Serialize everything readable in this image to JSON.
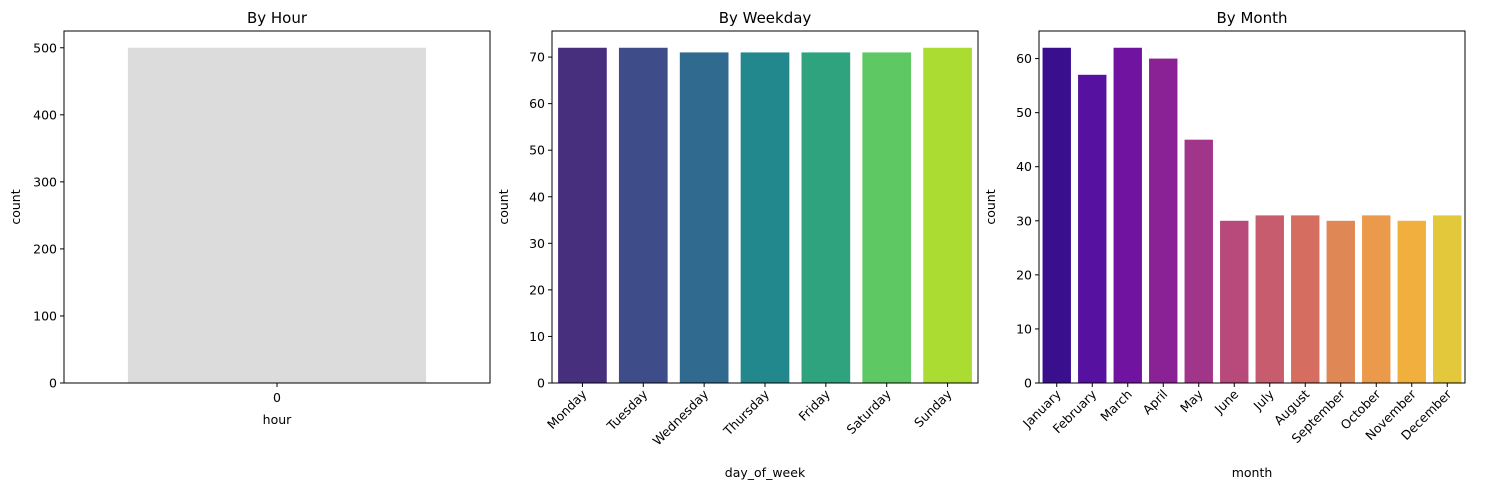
{
  "chart_data": [
    {
      "type": "bar",
      "title": "By Hour",
      "xlabel": "hour",
      "ylabel": "count",
      "categories": [
        "0"
      ],
      "values": [
        500
      ],
      "ylim": [
        0,
        525
      ],
      "yticks": [
        0,
        100,
        200,
        300,
        400,
        500
      ],
      "colors": [
        "#dcdcdc"
      ],
      "xtick_rotation": 0,
      "grid": false,
      "legend": "none"
    },
    {
      "type": "bar",
      "title": "By Weekday",
      "xlabel": "day_of_week",
      "ylabel": "count",
      "categories": [
        "Monday",
        "Tuesday",
        "Wednesday",
        "Thursday",
        "Friday",
        "Saturday",
        "Sunday"
      ],
      "values": [
        72,
        72,
        71,
        71,
        71,
        71,
        72
      ],
      "ylim": [
        0,
        75.6
      ],
      "yticks": [
        0,
        10,
        20,
        30,
        40,
        50,
        60,
        70
      ],
      "colors": [
        "#472f7d",
        "#3e4c8a",
        "#306a8e",
        "#23888e",
        "#2ea37d",
        "#5ec962",
        "#aadc32"
      ],
      "xtick_rotation": 45,
      "grid": false,
      "legend": "none"
    },
    {
      "type": "bar",
      "title": "By Month",
      "xlabel": "month",
      "ylabel": "count",
      "categories": [
        "January",
        "February",
        "March",
        "April",
        "May",
        "June",
        "July",
        "August",
        "September",
        "October",
        "November",
        "December"
      ],
      "values": [
        62,
        57,
        62,
        60,
        45,
        30,
        31,
        31,
        30,
        31,
        30,
        31
      ],
      "ylim": [
        0,
        65.1
      ],
      "yticks": [
        0,
        10,
        20,
        30,
        40,
        50,
        60
      ],
      "colors": [
        "#3a0f8e",
        "#5611a0",
        "#6f13a0",
        "#8a2295",
        "#a1358a",
        "#b84a7b",
        "#c65c6e",
        "#d56e61",
        "#e08756",
        "#ea9a4a",
        "#f1b03d",
        "#e2c83a"
      ],
      "xtick_rotation": 45,
      "grid": false,
      "legend": "none"
    }
  ]
}
